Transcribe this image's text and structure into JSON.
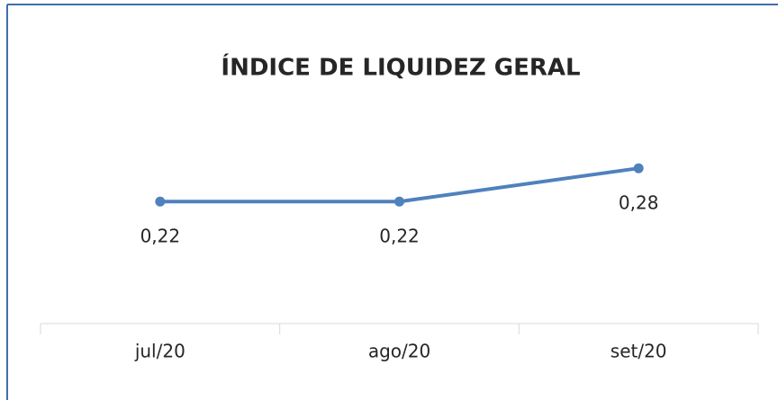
{
  "chart_data": {
    "type": "line",
    "title": "ÍNDICE DE LIQUIDEZ GERAL",
    "categories": [
      "jul/20",
      "ago/20",
      "set/20"
    ],
    "series": [
      {
        "color": "#4f81bd",
        "values": [
          0.22,
          0.22,
          0.28
        ],
        "value_labels": [
          "0,22",
          "0,22",
          "0,28"
        ]
      }
    ],
    "ylim": [
      0,
      0.35
    ]
  }
}
